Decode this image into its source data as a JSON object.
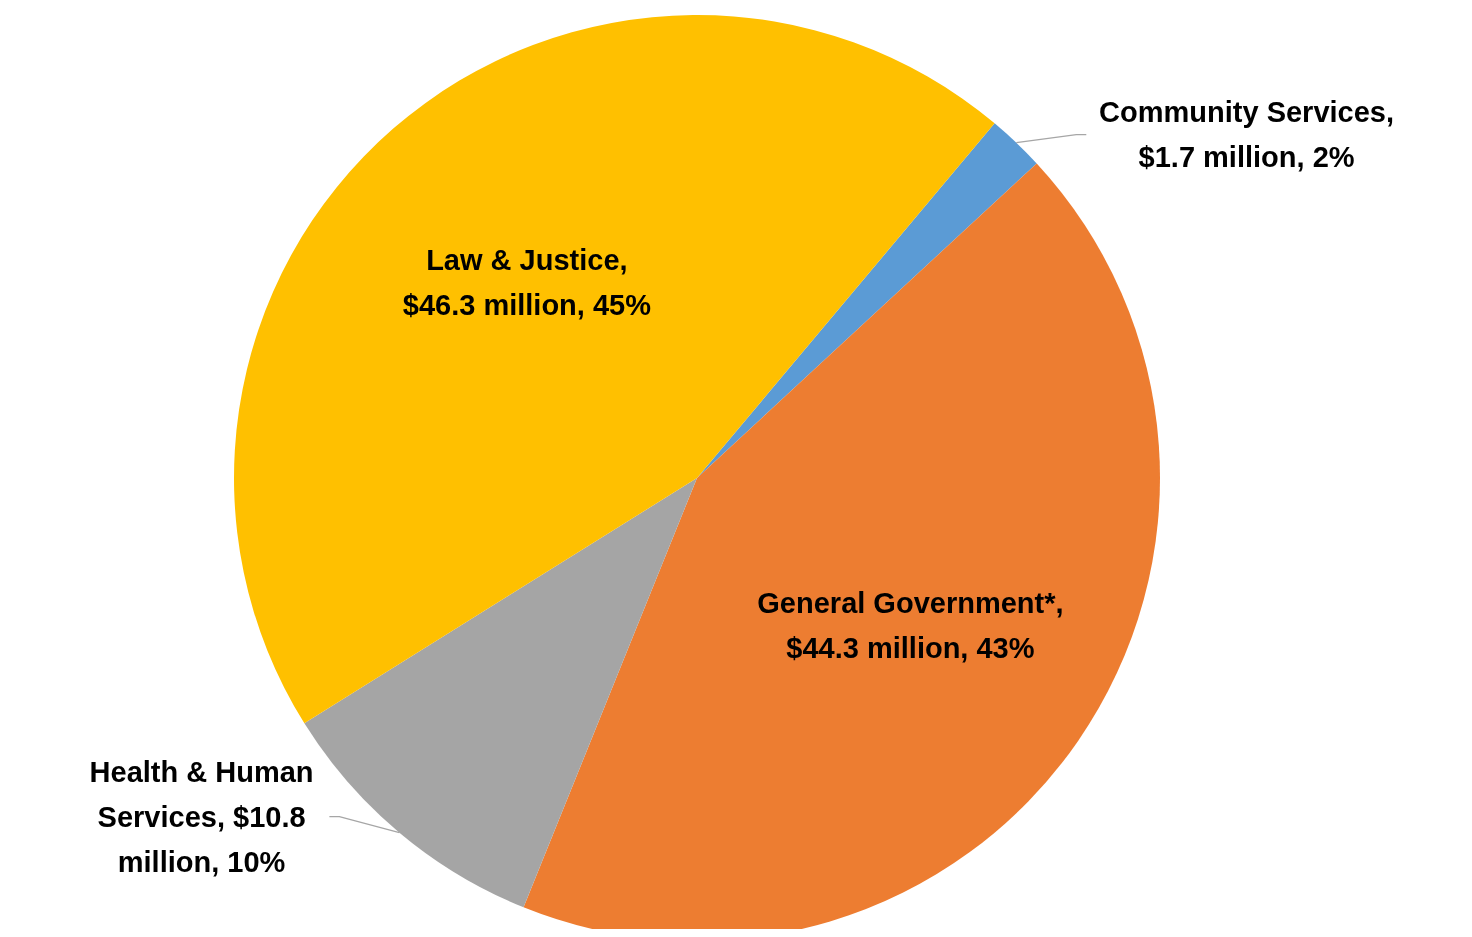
{
  "chart_data": {
    "type": "pie",
    "categories": [
      "Community Services, $1.7 million, 2%",
      "General Government*, $44.3 million, 43%",
      "Health & Human Services, $10.8 million, 10%",
      "Law & Justice, $46.3 million, 45%"
    ],
    "values": [
      2,
      43,
      10,
      45
    ],
    "colors": [
      "#5b9bd5",
      "#ed7d31",
      "#a5a5a5",
      "#ffc000"
    ],
    "legend": false
  }
}
